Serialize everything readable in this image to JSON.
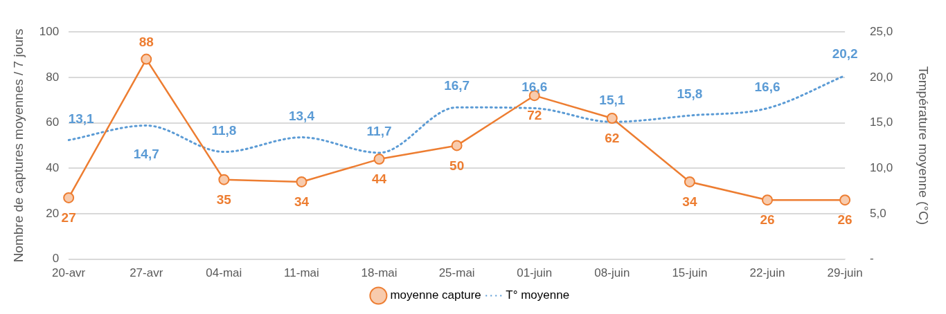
{
  "chart_data": {
    "type": "line",
    "categories": [
      "20-avr",
      "27-avr",
      "04-mai",
      "11-mai",
      "18-mai",
      "25-mai",
      "01-juin",
      "08-juin",
      "15-juin",
      "22-juin",
      "29-juin"
    ],
    "ylabel": "Nombre de captures moyennes / 7 jours",
    "y2label": "Température moyenne (°C)",
    "ylim": [
      0,
      100
    ],
    "yticks": [
      0,
      20,
      40,
      60,
      80,
      100
    ],
    "y2lim": [
      0,
      25
    ],
    "y2ticks": [
      {
        "value": 0,
        "label": "-"
      },
      {
        "value": 5,
        "label": "5,0"
      },
      {
        "value": 10,
        "label": "10,0"
      },
      {
        "value": 15,
        "label": "15,0"
      },
      {
        "value": 20,
        "label": "20,0"
      },
      {
        "value": 25,
        "label": "25,0"
      }
    ],
    "grid": "y",
    "legend": "bottom",
    "series": [
      {
        "name": "moyenne capture",
        "color": "#ed7d31",
        "marker": "circle",
        "line_style": "solid",
        "values": [
          27,
          88,
          35,
          34,
          44,
          50,
          72,
          62,
          34,
          26,
          26
        ],
        "value_labels": [
          "27",
          "88",
          "35",
          "34",
          "44",
          "50",
          "72",
          "62",
          "34",
          "26",
          "26"
        ]
      },
      {
        "name": "T° moyenne",
        "color": "#5b9bd5",
        "marker": "none",
        "line_style": "dotted",
        "axis": "y2",
        "values": [
          13.1,
          14.7,
          11.8,
          13.4,
          11.7,
          16.7,
          16.6,
          15.1,
          15.8,
          16.6,
          20.2
        ],
        "value_labels": [
          "13,1",
          "14,7",
          "11,8",
          "13,4",
          "11,7",
          "16,7",
          "16,6",
          "15,1",
          "15,8",
          "16,6",
          "20,2"
        ]
      }
    ]
  }
}
